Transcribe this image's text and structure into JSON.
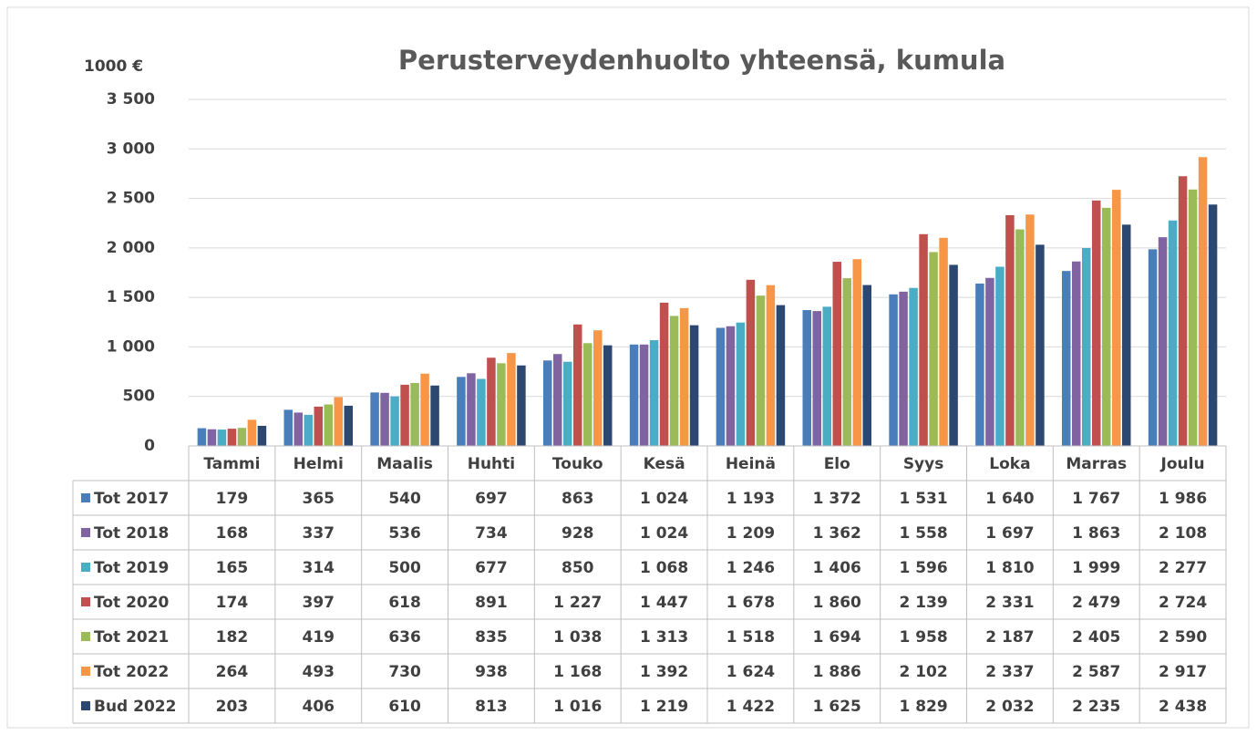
{
  "chart_data": {
    "type": "bar",
    "title": "Perusterveydenhuolto yhteensä, kumula",
    "y_label": "1000 €",
    "categories": [
      "Tammi",
      "Helmi",
      "Maalis",
      "Huhti",
      "Touko",
      "Kesä",
      "Heinä",
      "Elo",
      "Syys",
      "Loka",
      "Marras",
      "Joulu"
    ],
    "ylim": [
      0,
      3500
    ],
    "yticks": [
      0,
      500,
      {
        "value": 1000,
        "label": "1 000"
      },
      {
        "value": 1500,
        "label": "1 500"
      },
      {
        "value": 2000,
        "label": "2 000"
      },
      {
        "value": 2500,
        "label": "2 500"
      },
      {
        "value": 3000,
        "label": "3 000"
      },
      {
        "value": 3500,
        "label": "3 500"
      }
    ],
    "grid": true,
    "series": [
      {
        "name": "Tot 2017",
        "color": "#4a7ebb",
        "values": [
          179,
          365,
          540,
          697,
          863,
          1024,
          1193,
          1372,
          1531,
          1640,
          1767,
          1986
        ],
        "value_labels": [
          "179",
          "365",
          "540",
          "697",
          "863",
          "1 024",
          "1 193",
          "1 372",
          "1 531",
          "1 640",
          "1 767",
          "1 986"
        ]
      },
      {
        "name": "Tot 2018",
        "color": "#8064a2",
        "values": [
          168,
          337,
          536,
          734,
          928,
          1024,
          1209,
          1362,
          1558,
          1697,
          1863,
          2108
        ],
        "value_labels": [
          "168",
          "337",
          "536",
          "734",
          "928",
          "1 024",
          "1 209",
          "1 362",
          "1 558",
          "1 697",
          "1 863",
          "2 108"
        ]
      },
      {
        "name": "Tot 2019",
        "color": "#4bacc6",
        "values": [
          165,
          314,
          500,
          677,
          850,
          1068,
          1246,
          1406,
          1596,
          1810,
          1999,
          2277
        ],
        "value_labels": [
          "165",
          "314",
          "500",
          "677",
          "850",
          "1 068",
          "1 246",
          "1 406",
          "1 596",
          "1 810",
          "1 999",
          "2 277"
        ]
      },
      {
        "name": "Tot 2020",
        "color": "#c0504d",
        "values": [
          174,
          397,
          618,
          891,
          1227,
          1447,
          1678,
          1860,
          2139,
          2331,
          2479,
          2724
        ],
        "value_labels": [
          "174",
          "397",
          "618",
          "891",
          "1 227",
          "1 447",
          "1 678",
          "1 860",
          "2 139",
          "2 331",
          "2 479",
          "2 724"
        ]
      },
      {
        "name": "Tot 2021",
        "color": "#9bbb59",
        "values": [
          182,
          419,
          636,
          835,
          1038,
          1313,
          1518,
          1694,
          1958,
          2187,
          2405,
          2590
        ],
        "value_labels": [
          "182",
          "419",
          "636",
          "835",
          "1 038",
          "1 313",
          "1 518",
          "1 694",
          "1 958",
          "2 187",
          "2 405",
          "2 590"
        ]
      },
      {
        "name": "Tot 2022",
        "color": "#f79646",
        "values": [
          264,
          493,
          730,
          938,
          1168,
          1392,
          1624,
          1886,
          2102,
          2337,
          2587,
          2917
        ],
        "value_labels": [
          "264",
          "493",
          "730",
          "938",
          "1 168",
          "1 392",
          "1 624",
          "1 886",
          "2 102",
          "2 337",
          "2 587",
          "2 917"
        ]
      },
      {
        "name": "Bud 2022",
        "color": "#2c4770",
        "values": [
          203,
          406,
          610,
          813,
          1016,
          1219,
          1422,
          1625,
          1829,
          2032,
          2235,
          2438
        ],
        "value_labels": [
          "203",
          "406",
          "610",
          "813",
          "1 016",
          "1 219",
          "1 422",
          "1 625",
          "1 829",
          "2 032",
          "2 235",
          "2 438"
        ]
      }
    ]
  }
}
